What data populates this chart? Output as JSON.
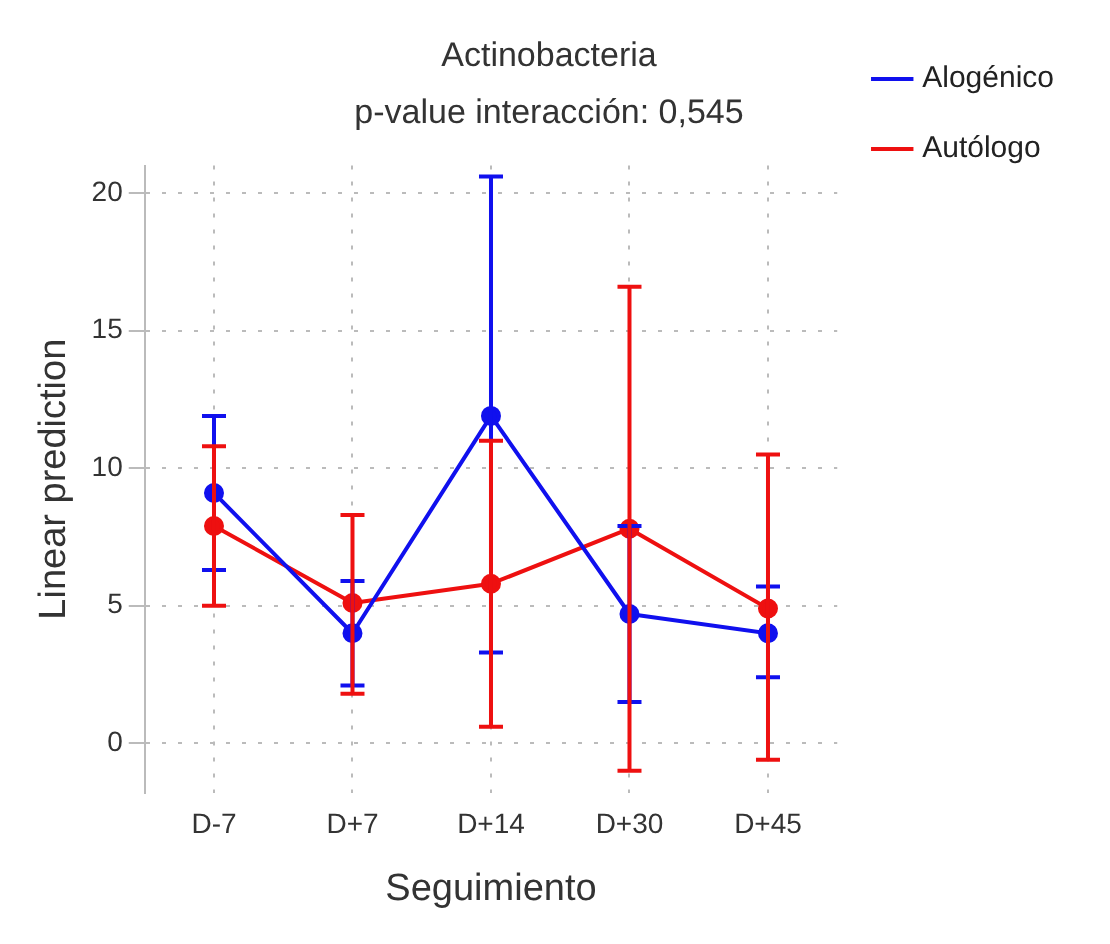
{
  "chart_data": {
    "type": "line",
    "title": "Actinobacteria",
    "subtitle": "p-value interacción: 0,545",
    "xlabel": "Seguimiento",
    "ylabel": "Linear prediction",
    "categories": [
      "D-7",
      "D+7",
      "D+14",
      "D+30",
      "D+45"
    ],
    "series": [
      {
        "name": "Alogénico",
        "color": "#1010ee",
        "values": [
          9.1,
          4.0,
          11.9,
          4.7,
          4.0
        ],
        "errors": [
          [
            6.3,
            11.9
          ],
          [
            2.1,
            5.9
          ],
          [
            3.3,
            20.6
          ],
          [
            1.5,
            7.9
          ],
          [
            2.4,
            5.7
          ]
        ]
      },
      {
        "name": "Autólogo",
        "color": "#ee1010",
        "values": [
          7.9,
          5.1,
          5.8,
          7.8,
          4.9
        ],
        "errors": [
          [
            5.0,
            10.8
          ],
          [
            1.8,
            8.3
          ],
          [
            0.6,
            11.0
          ],
          [
            -1.0,
            16.6
          ],
          [
            -0.6,
            10.5
          ]
        ]
      }
    ],
    "ylim": [
      -1.8,
      21
    ],
    "yticks": [
      0,
      5,
      10,
      15,
      20
    ],
    "grid": true,
    "legend": "right",
    "marker": "circle",
    "line_style": "solid"
  }
}
